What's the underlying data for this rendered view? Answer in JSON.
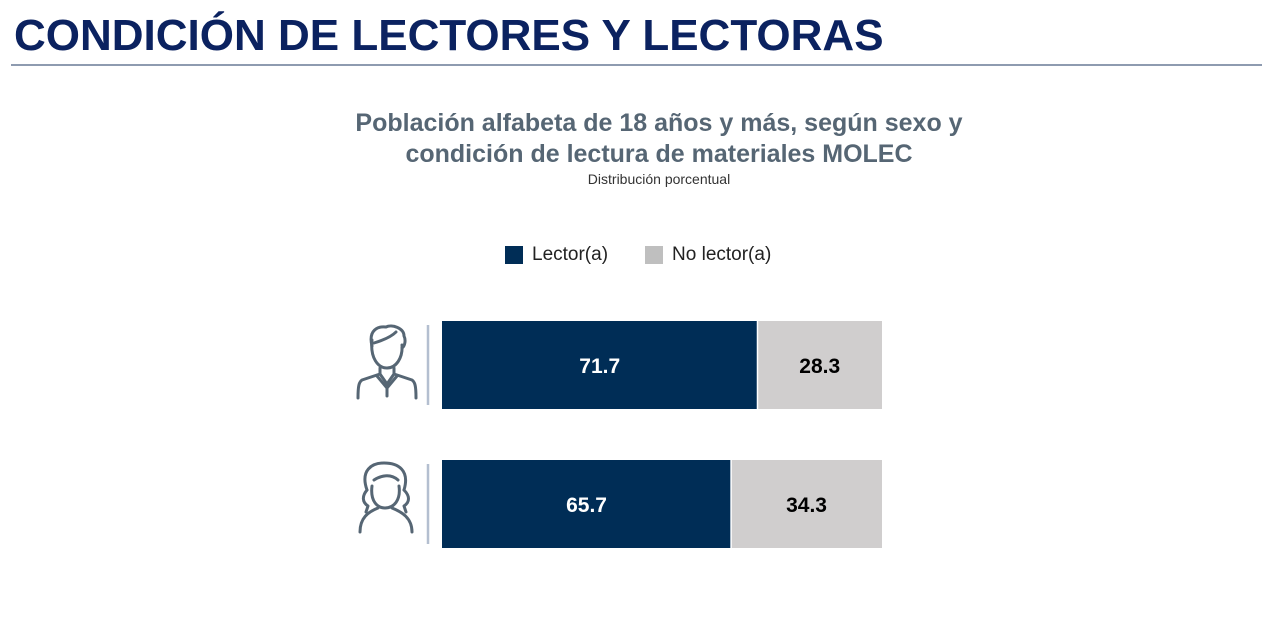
{
  "header": {
    "title": "CONDICIÓN DE LECTORES Y LECTORAS"
  },
  "chart_data": {
    "type": "bar",
    "orientation": "horizontal",
    "stacked": true,
    "title_lines": [
      "Población alfabeta de 18 años y más, según sexo y",
      "condición de lectura de materiales MOLEC"
    ],
    "subtitle": "Distribución porcentual",
    "categories": [
      "Hombres",
      "Mujeres"
    ],
    "category_icons": [
      "man-icon",
      "woman-icon"
    ],
    "series": [
      {
        "name": "Lector(a)",
        "color": "#002d56",
        "label_color": "#ffffff",
        "values": [
          71.7,
          65.7
        ]
      },
      {
        "name": "No lector(a)",
        "color": "#d0cece",
        "label_color": "#000000",
        "values": [
          28.3,
          34.3
        ]
      }
    ],
    "xlim": [
      0,
      100
    ],
    "legend_position": "top-center",
    "grid": false,
    "value_labels": [
      [
        "71.7",
        "65.7"
      ],
      [
        "28.3",
        "34.3"
      ]
    ]
  }
}
